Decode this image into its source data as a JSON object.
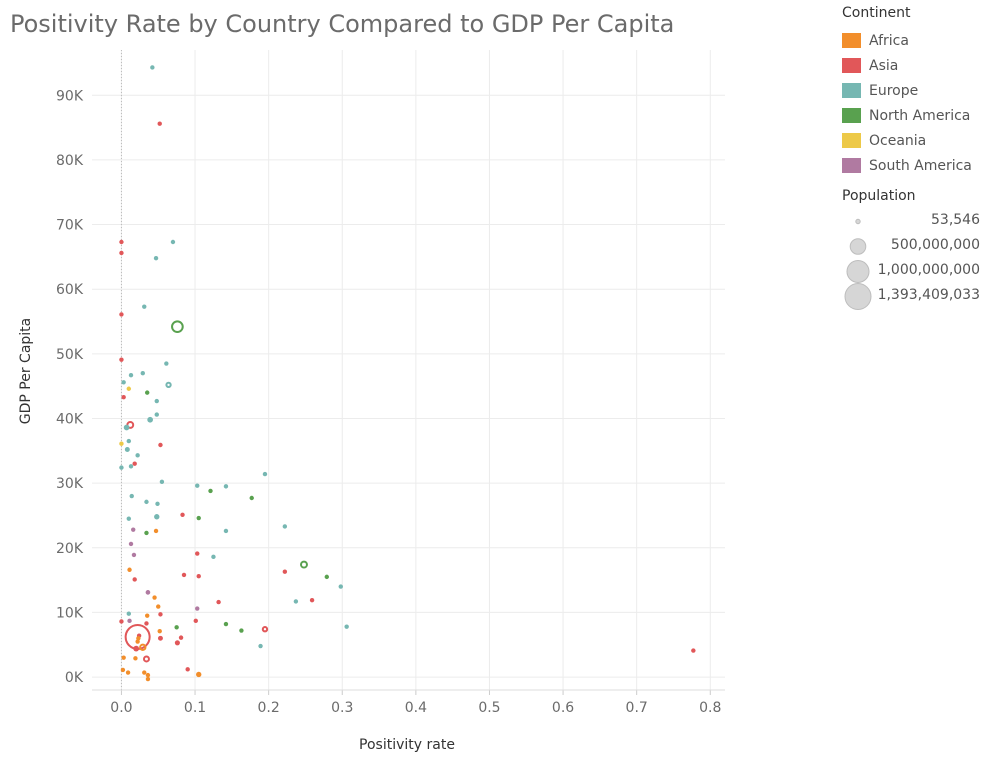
{
  "chart_data": {
    "type": "scatter",
    "title": "Positivity Rate by Country Compared to GDP Per Capita",
    "xlabel": "Positivity rate",
    "ylabel": "GDP Per Capita",
    "xlim": [
      -0.04,
      0.82
    ],
    "ylim": [
      -2000,
      97000
    ],
    "x_ticks": [
      {
        "value": 0.0,
        "label": "0.0"
      },
      {
        "value": 0.1,
        "label": "0.1"
      },
      {
        "value": 0.2,
        "label": "0.2"
      },
      {
        "value": 0.3,
        "label": "0.3"
      },
      {
        "value": 0.4,
        "label": "0.4"
      },
      {
        "value": 0.5,
        "label": "0.5"
      },
      {
        "value": 0.6,
        "label": "0.6"
      },
      {
        "value": 0.7,
        "label": "0.7"
      },
      {
        "value": 0.8,
        "label": "0.8"
      }
    ],
    "y_ticks": [
      {
        "value": 0,
        "label": "0K"
      },
      {
        "value": 10000,
        "label": "10K"
      },
      {
        "value": 20000,
        "label": "20K"
      },
      {
        "value": 30000,
        "label": "30K"
      },
      {
        "value": 40000,
        "label": "40K"
      },
      {
        "value": 50000,
        "label": "50K"
      },
      {
        "value": 60000,
        "label": "60K"
      },
      {
        "value": 70000,
        "label": "70K"
      },
      {
        "value": 80000,
        "label": "80K"
      },
      {
        "value": 90000,
        "label": "90K"
      }
    ],
    "grid": true,
    "legend_placement": "right",
    "color_legend": {
      "title": "Continent",
      "items": [
        {
          "label": "Africa",
          "color": "#f28e2b"
        },
        {
          "label": "Asia",
          "color": "#e15759"
        },
        {
          "label": "Europe",
          "color": "#76b7b2"
        },
        {
          "label": "North America",
          "color": "#59a14f"
        },
        {
          "label": "Oceania",
          "color": "#edc948"
        },
        {
          "label": "South America",
          "color": "#b07aa1"
        }
      ]
    },
    "size_legend": {
      "title": "Population",
      "items": [
        {
          "label": "53,546",
          "population": 53546
        },
        {
          "label": "500,000,000",
          "population": 500000000
        },
        {
          "label": "1,000,000,000",
          "population": 1000000000
        },
        {
          "label": "1,393,409,033",
          "population": 1393409033
        }
      ]
    },
    "points": [
      {
        "x": 0.042,
        "y": 94300,
        "continent": "Europe",
        "population": 600000
      },
      {
        "x": 0.052,
        "y": 85600,
        "continent": "Asia",
        "population": 2500000
      },
      {
        "x": 0.07,
        "y": 67300,
        "continent": "Europe",
        "population": 5000000
      },
      {
        "x": 0.0,
        "y": 67300,
        "continent": "Asia",
        "population": 600000
      },
      {
        "x": 0.0,
        "y": 65600,
        "continent": "Asia",
        "population": 5700000
      },
      {
        "x": 0.047,
        "y": 64800,
        "continent": "Europe",
        "population": 5400000
      },
      {
        "x": 0.031,
        "y": 57300,
        "continent": "Europe",
        "population": 8600000
      },
      {
        "x": 0.0,
        "y": 56100,
        "continent": "Asia",
        "population": 4500000
      },
      {
        "x": 0.076,
        "y": 54200,
        "continent": "North America",
        "population": 332000000
      },
      {
        "x": 0.0,
        "y": 49100,
        "continent": "Asia",
        "population": 10000000
      },
      {
        "x": 0.061,
        "y": 48500,
        "continent": "Europe",
        "population": 5500000
      },
      {
        "x": 0.013,
        "y": 46700,
        "continent": "Europe",
        "population": 5800000
      },
      {
        "x": 0.029,
        "y": 47000,
        "continent": "Europe",
        "population": 9000000
      },
      {
        "x": 0.003,
        "y": 45600,
        "continent": "Europe",
        "population": 340000
      },
      {
        "x": 0.064,
        "y": 45200,
        "continent": "Europe",
        "population": 83000000
      },
      {
        "x": 0.01,
        "y": 44600,
        "continent": "Oceania",
        "population": 25700000
      },
      {
        "x": 0.035,
        "y": 44000,
        "continent": "North America",
        "population": 38000000
      },
      {
        "x": 0.003,
        "y": 43300,
        "continent": "Asia",
        "population": 1400000
      },
      {
        "x": 0.048,
        "y": 42700,
        "continent": "Europe",
        "population": 10000000
      },
      {
        "x": 0.048,
        "y": 40600,
        "continent": "Europe",
        "population": 11500000
      },
      {
        "x": 0.039,
        "y": 39800,
        "continent": "Europe",
        "population": 67000000
      },
      {
        "x": 0.012,
        "y": 39000,
        "continent": "Asia",
        "population": 126000000
      },
      {
        "x": 0.007,
        "y": 38600,
        "continent": "Europe",
        "population": 67000000
      },
      {
        "x": 0.01,
        "y": 36500,
        "continent": "Europe",
        "population": 2000000
      },
      {
        "x": 0.0,
        "y": 36100,
        "continent": "Oceania",
        "population": 5000000
      },
      {
        "x": 0.053,
        "y": 35900,
        "continent": "Asia",
        "population": 8700000
      },
      {
        "x": 0.008,
        "y": 35200,
        "continent": "Europe",
        "population": 51000000
      },
      {
        "x": 0.022,
        "y": 34300,
        "continent": "Europe",
        "population": 5500000
      },
      {
        "x": 0.018,
        "y": 33000,
        "continent": "Asia",
        "population": 4000000
      },
      {
        "x": 0.013,
        "y": 32600,
        "continent": "Europe",
        "population": 5000000
      },
      {
        "x": 0.0,
        "y": 32400,
        "continent": "Europe",
        "population": 500000
      },
      {
        "x": 0.195,
        "y": 31400,
        "continent": "Europe",
        "population": 2100000
      },
      {
        "x": 0.055,
        "y": 30200,
        "continent": "Europe",
        "population": 5000000
      },
      {
        "x": 0.103,
        "y": 29600,
        "continent": "Europe",
        "population": 4000000
      },
      {
        "x": 0.142,
        "y": 29500,
        "continent": "Europe",
        "population": 1300000
      },
      {
        "x": 0.121,
        "y": 28800,
        "continent": "North America",
        "population": 600000
      },
      {
        "x": 0.014,
        "y": 28000,
        "continent": "Europe",
        "population": 2700000
      },
      {
        "x": 0.177,
        "y": 27700,
        "continent": "North America",
        "population": 400000
      },
      {
        "x": 0.034,
        "y": 27100,
        "continent": "Europe",
        "population": 8000000
      },
      {
        "x": 0.049,
        "y": 26800,
        "continent": "Europe",
        "population": 5500000
      },
      {
        "x": 0.083,
        "y": 25100,
        "continent": "Asia",
        "population": 35000000
      },
      {
        "x": 0.048,
        "y": 24800,
        "continent": "Europe",
        "population": 60000000
      },
      {
        "x": 0.105,
        "y": 24600,
        "continent": "North America",
        "population": 2000000
      },
      {
        "x": 0.01,
        "y": 24500,
        "continent": "Europe",
        "population": 1200000
      },
      {
        "x": 0.222,
        "y": 23300,
        "continent": "Europe",
        "population": 6000000
      },
      {
        "x": 0.016,
        "y": 22800,
        "continent": "South America",
        "population": 3500000
      },
      {
        "x": 0.142,
        "y": 22600,
        "continent": "Europe",
        "population": 4300000
      },
      {
        "x": 0.034,
        "y": 22300,
        "continent": "North America",
        "population": 4000000
      },
      {
        "x": 0.047,
        "y": 22600,
        "continent": "Africa",
        "population": 1300000
      },
      {
        "x": 0.013,
        "y": 20600,
        "continent": "South America",
        "population": 3000000
      },
      {
        "x": 0.103,
        "y": 19100,
        "continent": "Asia",
        "population": 20000000
      },
      {
        "x": 0.017,
        "y": 18900,
        "continent": "South America",
        "population": 19000000
      },
      {
        "x": 0.125,
        "y": 18600,
        "continent": "Europe",
        "population": 3800000
      },
      {
        "x": 0.248,
        "y": 17400,
        "continent": "North America",
        "population": 130000000
      },
      {
        "x": 0.011,
        "y": 16600,
        "continent": "Africa",
        "population": 1500000
      },
      {
        "x": 0.222,
        "y": 16300,
        "continent": "Asia",
        "population": 35000000
      },
      {
        "x": 0.085,
        "y": 15800,
        "continent": "Asia",
        "population": 2000000
      },
      {
        "x": 0.105,
        "y": 15600,
        "continent": "Asia",
        "population": 4500000
      },
      {
        "x": 0.279,
        "y": 15500,
        "continent": "North America",
        "population": 1500000
      },
      {
        "x": 0.018,
        "y": 15100,
        "continent": "Asia",
        "population": 3000000
      },
      {
        "x": 0.298,
        "y": 14000,
        "continent": "Europe",
        "population": 4000000
      },
      {
        "x": 0.036,
        "y": 13100,
        "continent": "South America",
        "population": 45000000
      },
      {
        "x": 0.045,
        "y": 12300,
        "continent": "Africa",
        "population": 35000000
      },
      {
        "x": 0.237,
        "y": 11700,
        "continent": "Europe",
        "population": 3000000
      },
      {
        "x": 0.259,
        "y": 11900,
        "continent": "Asia",
        "population": 1000000
      },
      {
        "x": 0.132,
        "y": 11600,
        "continent": "Asia",
        "population": 4000000
      },
      {
        "x": 0.05,
        "y": 10900,
        "continent": "Africa",
        "population": 6000000
      },
      {
        "x": 0.103,
        "y": 10600,
        "continent": "South America",
        "population": 11000000
      },
      {
        "x": 0.01,
        "y": 9800,
        "continent": "Europe",
        "population": 3000000
      },
      {
        "x": 0.035,
        "y": 9500,
        "continent": "Africa",
        "population": 2000000
      },
      {
        "x": 0.053,
        "y": 9700,
        "continent": "Asia",
        "population": 2000000
      },
      {
        "x": 0.0,
        "y": 8600,
        "continent": "Asia",
        "population": 5500000
      },
      {
        "x": 0.011,
        "y": 8700,
        "continent": "South America",
        "population": 3500000
      },
      {
        "x": 0.034,
        "y": 8300,
        "continent": "Asia",
        "population": 2000000
      },
      {
        "x": 0.101,
        "y": 8700,
        "continent": "Asia",
        "population": 4500000
      },
      {
        "x": 0.142,
        "y": 8200,
        "continent": "North America",
        "population": 3000000
      },
      {
        "x": 0.075,
        "y": 7700,
        "continent": "North America",
        "population": 3000000
      },
      {
        "x": 0.163,
        "y": 7200,
        "continent": "North America",
        "population": 7000000
      },
      {
        "x": 0.195,
        "y": 7400,
        "continent": "Asia",
        "population": 84000000
      },
      {
        "x": 0.306,
        "y": 7800,
        "continent": "Europe",
        "population": 7000000
      },
      {
        "x": 0.052,
        "y": 7100,
        "continent": "Africa",
        "population": 12000000
      },
      {
        "x": 0.024,
        "y": 6400,
        "continent": "Asia",
        "population": 2000000
      },
      {
        "x": 0.081,
        "y": 6100,
        "continent": "Asia",
        "population": 5000000
      },
      {
        "x": 0.053,
        "y": 6000,
        "continent": "Asia",
        "population": 50000000
      },
      {
        "x": 0.022,
        "y": 5500,
        "continent": "Africa",
        "population": 4000000
      },
      {
        "x": 0.023,
        "y": 6000,
        "continent": "Africa",
        "population": 1500000
      },
      {
        "x": 0.076,
        "y": 5300,
        "continent": "Asia",
        "population": 54000000
      },
      {
        "x": 0.022,
        "y": 6200,
        "continent": "Asia",
        "population": 1393409033
      },
      {
        "x": 0.189,
        "y": 4800,
        "continent": "Europe",
        "population": 3500000
      },
      {
        "x": 0.029,
        "y": 4600,
        "continent": "Africa",
        "population": 110000000
      },
      {
        "x": 0.02,
        "y": 4400,
        "continent": "Asia",
        "population": 70000000
      },
      {
        "x": 0.777,
        "y": 4100,
        "continent": "Asia",
        "population": 5000000
      },
      {
        "x": 0.003,
        "y": 3000,
        "continent": "Africa",
        "population": 3000000
      },
      {
        "x": 0.019,
        "y": 2900,
        "continent": "Africa",
        "population": 4000000
      },
      {
        "x": 0.034,
        "y": 2800,
        "continent": "Asia",
        "population": 100000000
      },
      {
        "x": 0.002,
        "y": 1100,
        "continent": "Africa",
        "population": 2000000
      },
      {
        "x": 0.009,
        "y": 700,
        "continent": "Africa",
        "population": 2000000
      },
      {
        "x": 0.031,
        "y": 700,
        "continent": "Africa",
        "population": 25000000
      },
      {
        "x": 0.036,
        "y": 300,
        "continent": "Africa",
        "population": 30000000
      },
      {
        "x": 0.036,
        "y": -300,
        "continent": "Africa",
        "population": 3000000
      },
      {
        "x": 0.09,
        "y": 1200,
        "continent": "Asia",
        "population": 2500000
      },
      {
        "x": 0.105,
        "y": 400,
        "continent": "Africa",
        "population": 60000000
      }
    ]
  }
}
